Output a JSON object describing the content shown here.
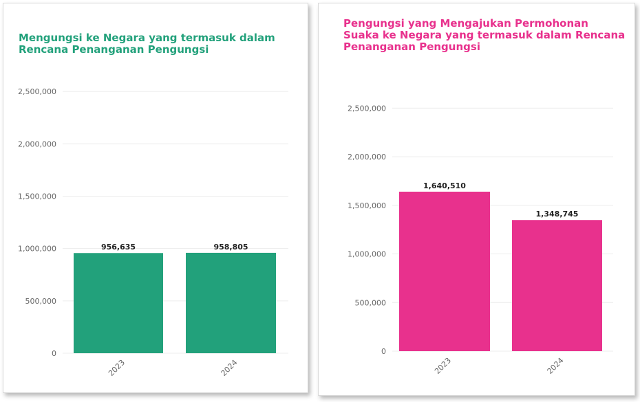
{
  "chart_data": [
    {
      "type": "bar",
      "title": "Mengungsi ke Negara yang termasuk dalam Rencana Penanganan Pengungsi",
      "categories": [
        "2023",
        "2024"
      ],
      "values": [
        956635,
        958805
      ],
      "data_labels": [
        "956,635",
        "958,805"
      ],
      "ylim": [
        0,
        2750000
      ],
      "yticks": [
        0,
        500000,
        1000000,
        1500000,
        2000000,
        2500000
      ],
      "ytick_labels": [
        "0",
        "500,000",
        "1,000,000",
        "1,500,000",
        "2,000,000",
        "2,500,000"
      ],
      "color": "#22a17b",
      "grid": true
    },
    {
      "type": "bar",
      "title": "Pengungsi yang Mengajukan Permohonan Suaka ke Negara yang termasuk dalam Rencana Penanganan Pengungsi",
      "categories": [
        "2023",
        "2024"
      ],
      "values": [
        1640510,
        1348745
      ],
      "data_labels": [
        "1,640,510",
        "1,348,745"
      ],
      "ylim": [
        0,
        2750000
      ],
      "yticks": [
        0,
        500000,
        1000000,
        1500000,
        2000000,
        2500000
      ],
      "ytick_labels": [
        "0",
        "500,000",
        "1,000,000",
        "1,500,000",
        "2,000,000",
        "2,500,000"
      ],
      "color": "#e8318d",
      "grid": true
    }
  ]
}
